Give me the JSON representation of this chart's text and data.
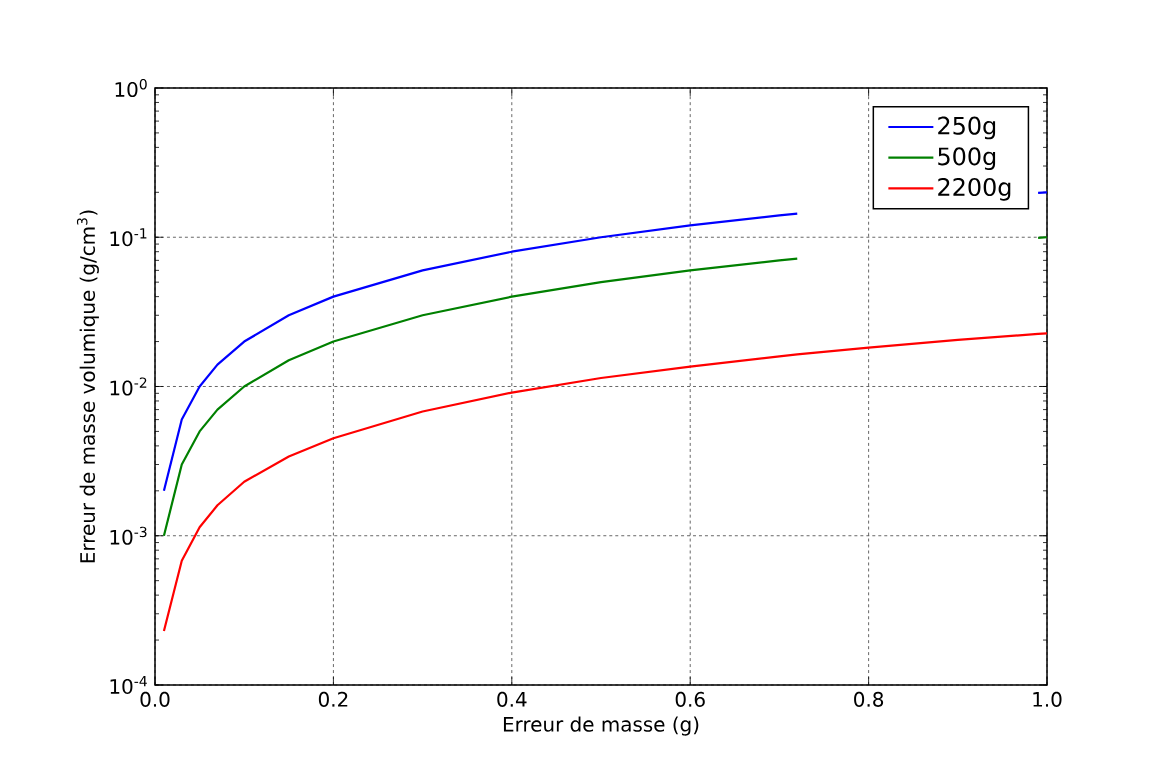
{
  "chart_data": {
    "type": "line",
    "xlabel": "Erreur de masse (g)",
    "ylabel": "Erreur de masse volumique (g/cm$^{3}$)",
    "x": [
      0.01,
      0.03,
      0.05,
      0.07,
      0.1,
      0.15,
      0.2,
      0.3,
      0.4,
      0.5,
      0.6,
      0.7,
      0.72,
      0.8,
      0.9,
      0.99,
      1.0
    ],
    "series": [
      {
        "name": "250g",
        "color": "#0000ff",
        "values": [
          0.002,
          0.006,
          0.01,
          0.014,
          0.02,
          0.03,
          0.04,
          0.06,
          0.08,
          0.1,
          0.12,
          0.14,
          0.144,
          null,
          null,
          0.198,
          0.2
        ]
      },
      {
        "name": "500g",
        "color": "#008000",
        "values": [
          0.001,
          0.003,
          0.005,
          0.007,
          0.01,
          0.015,
          0.02,
          0.03,
          0.04,
          0.05,
          0.06,
          0.07,
          0.072,
          null,
          null,
          0.099,
          0.1
        ]
      },
      {
        "name": "2200g",
        "color": "#ff0000",
        "values": [
          0.00023,
          0.00068,
          0.00114,
          0.0016,
          0.0023,
          0.0034,
          0.0045,
          0.0068,
          0.0091,
          0.0114,
          0.0136,
          0.0159,
          0.0164,
          0.0182,
          0.0205,
          0.0225,
          0.0227
        ]
      }
    ],
    "xlim": [
      0.0,
      1.0
    ],
    "xticks": [
      {
        "value": 0.0,
        "label": "0.0"
      },
      0.2,
      0.4,
      0.6,
      0.8,
      {
        "value": 1.0,
        "label": "1.0"
      }
    ],
    "ylim": [
      0.0001,
      1
    ],
    "yticks": [
      {
        "value": 0.0001,
        "label": "10$^{-4}$"
      },
      {
        "value": 0.001,
        "label": "10$^{-3}$"
      },
      {
        "value": 0.01,
        "label": "10$^{-2}$"
      },
      {
        "value": 0.1,
        "label": "10$^{-1}$"
      },
      {
        "value": 1,
        "label": "10$^{0}$"
      }
    ],
    "log": "y",
    "grid": true,
    "legend": "top right",
    "marker": "none",
    "line_style": "solid"
  }
}
